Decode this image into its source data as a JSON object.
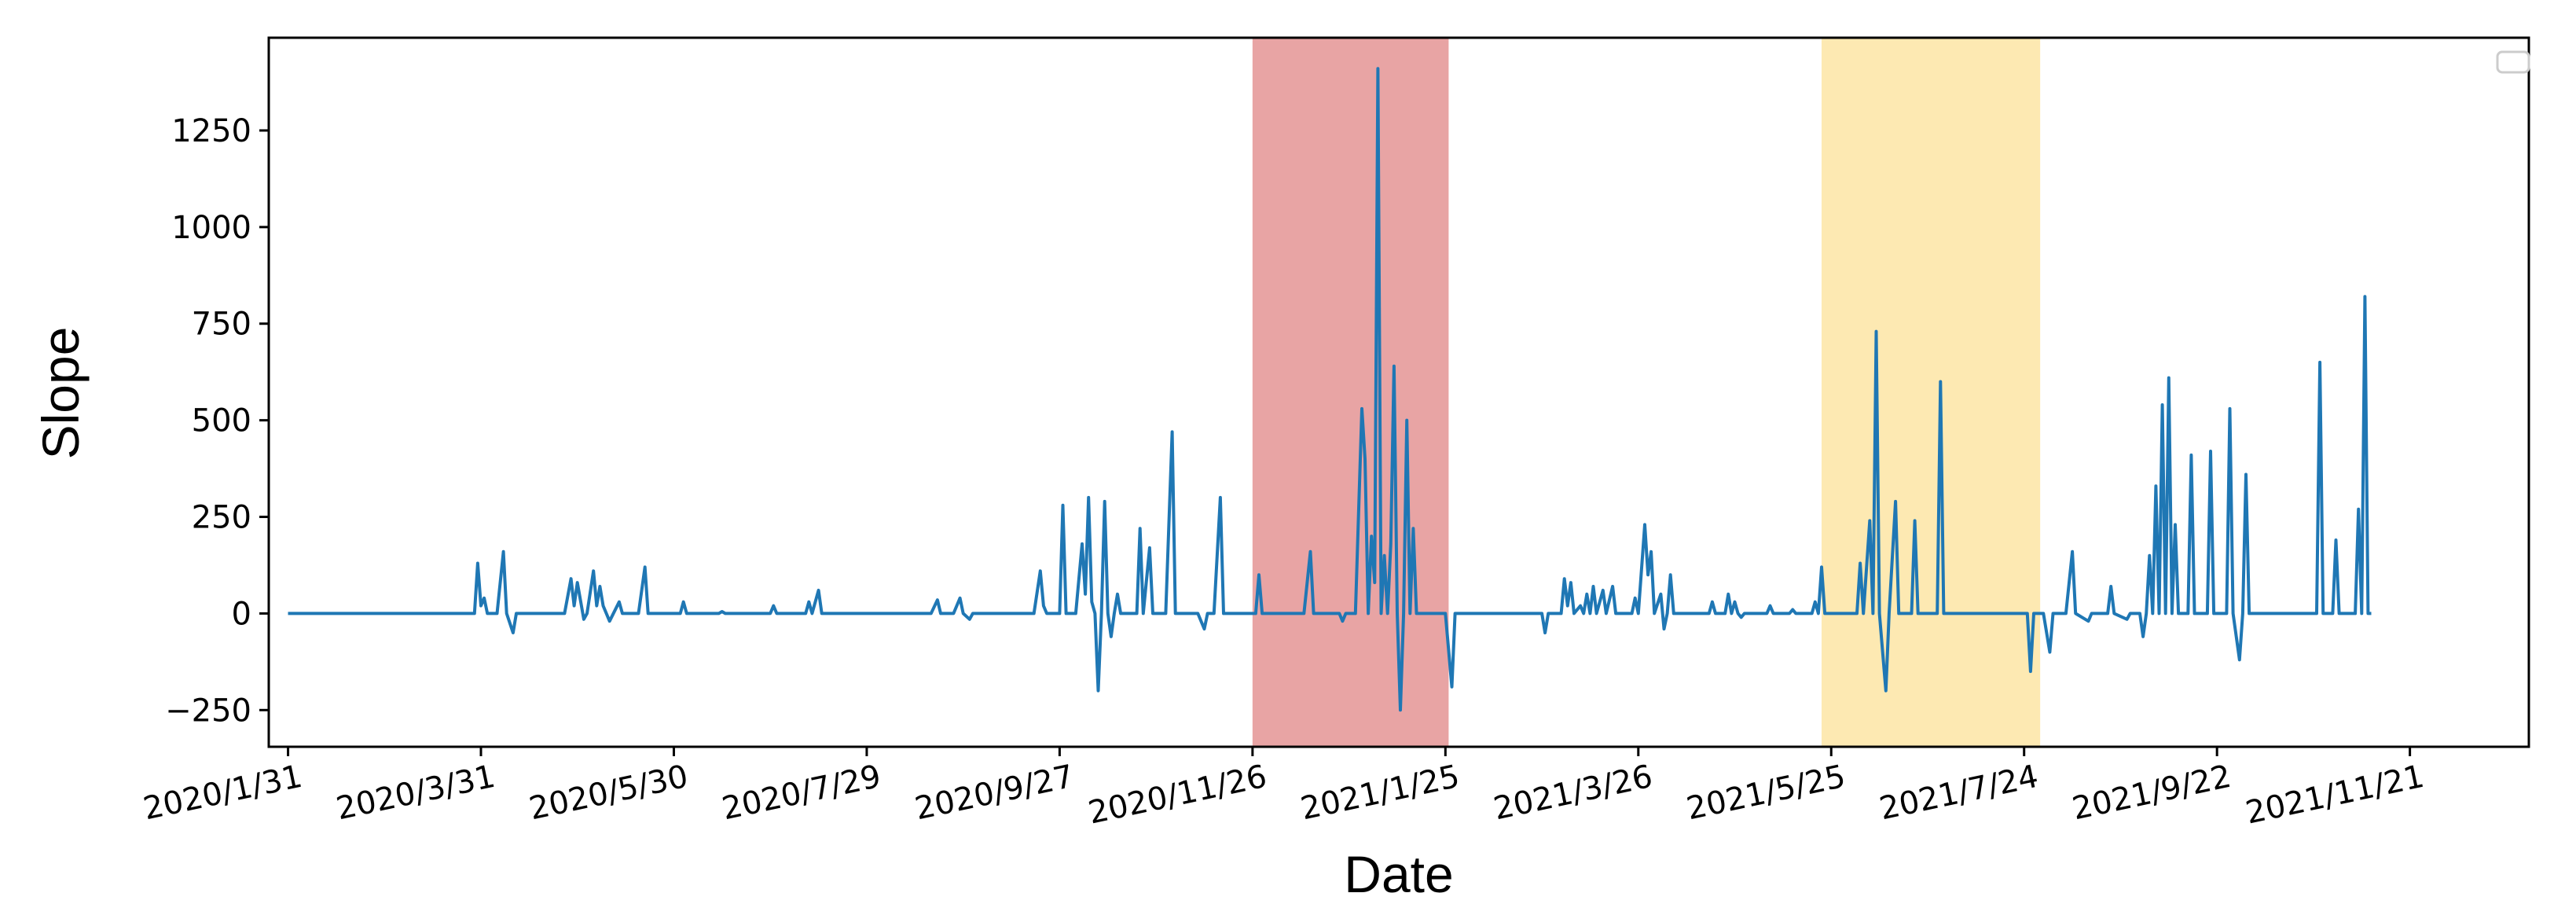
{
  "chart_data": {
    "type": "line",
    "xlabel": "Date",
    "ylabel": "Slope",
    "title": "",
    "grid": false,
    "legend": "top-right",
    "legend_entries": [],
    "x_axis_type": "date",
    "xlim": [
      "2020-01-25",
      "2021-12-28"
    ],
    "ylim": [
      -345,
      1490
    ],
    "x_tick_labels": [
      {
        "date": "2020-01-31",
        "label": "2020/1/31"
      },
      {
        "date": "2020-03-31",
        "label": "2020/3/31"
      },
      {
        "date": "2020-05-30",
        "label": "2020/5/30"
      },
      {
        "date": "2020-07-29",
        "label": "2020/7/29"
      },
      {
        "date": "2020-09-27",
        "label": "2020/9/27"
      },
      {
        "date": "2020-11-26",
        "label": "2020/11/26"
      },
      {
        "date": "2021-01-25",
        "label": "2021/1/25"
      },
      {
        "date": "2021-03-26",
        "label": "2021/3/26"
      },
      {
        "date": "2021-05-25",
        "label": "2021/5/25"
      },
      {
        "date": "2021-07-24",
        "label": "2021/7/24"
      },
      {
        "date": "2021-09-22",
        "label": "2021/9/22"
      },
      {
        "date": "2021-11-21",
        "label": "2021/11/21"
      }
    ],
    "y_ticks": [
      -250,
      0,
      250,
      500,
      750,
      1000,
      1250
    ],
    "y_tick_labels": [
      "−250",
      "0",
      "250",
      "500",
      "750",
      "1000",
      "1250"
    ],
    "shaded_regions": [
      {
        "start": "2020-11-26",
        "end": "2021-01-26",
        "color": "#e8a4a4"
      },
      {
        "start": "2021-05-22",
        "end": "2021-07-29",
        "color": "#fde9b2"
      }
    ],
    "series": [
      {
        "color": "#1f77b4",
        "points": [
          [
            "2020-01-31",
            0
          ],
          [
            "2020-03-29",
            0
          ],
          [
            "2020-03-30",
            130
          ],
          [
            "2020-03-31",
            20
          ],
          [
            "2020-04-01",
            40
          ],
          [
            "2020-04-02",
            0
          ],
          [
            "2020-04-05",
            0
          ],
          [
            "2020-04-07",
            160
          ],
          [
            "2020-04-08",
            0
          ],
          [
            "2020-04-10",
            -50
          ],
          [
            "2020-04-11",
            0
          ],
          [
            "2020-04-26",
            0
          ],
          [
            "2020-04-28",
            90
          ],
          [
            "2020-04-29",
            20
          ],
          [
            "2020-04-30",
            80
          ],
          [
            "2020-05-02",
            -15
          ],
          [
            "2020-05-03",
            0
          ],
          [
            "2020-05-05",
            110
          ],
          [
            "2020-05-06",
            20
          ],
          [
            "2020-05-07",
            70
          ],
          [
            "2020-05-08",
            20
          ],
          [
            "2020-05-10",
            -20
          ],
          [
            "2020-05-13",
            30
          ],
          [
            "2020-05-14",
            0
          ],
          [
            "2020-05-19",
            0
          ],
          [
            "2020-05-21",
            120
          ],
          [
            "2020-05-22",
            0
          ],
          [
            "2020-06-01",
            0
          ],
          [
            "2020-06-02",
            30
          ],
          [
            "2020-06-03",
            0
          ],
          [
            "2020-06-13",
            0
          ],
          [
            "2020-06-14",
            5
          ],
          [
            "2020-06-15",
            0
          ],
          [
            "2020-06-29",
            0
          ],
          [
            "2020-06-30",
            20
          ],
          [
            "2020-07-01",
            0
          ],
          [
            "2020-07-10",
            0
          ],
          [
            "2020-07-11",
            30
          ],
          [
            "2020-07-12",
            0
          ],
          [
            "2020-07-14",
            60
          ],
          [
            "2020-07-15",
            0
          ],
          [
            "2020-08-18",
            0
          ],
          [
            "2020-08-20",
            35
          ],
          [
            "2020-08-21",
            0
          ],
          [
            "2020-08-25",
            0
          ],
          [
            "2020-08-27",
            40
          ],
          [
            "2020-08-28",
            0
          ],
          [
            "2020-08-30",
            -15
          ],
          [
            "2020-08-31",
            0
          ],
          [
            "2020-09-19",
            0
          ],
          [
            "2020-09-21",
            110
          ],
          [
            "2020-09-22",
            20
          ],
          [
            "2020-09-23",
            0
          ],
          [
            "2020-09-27",
            0
          ],
          [
            "2020-09-28",
            280
          ],
          [
            "2020-09-29",
            0
          ],
          [
            "2020-10-02",
            0
          ],
          [
            "2020-10-04",
            180
          ],
          [
            "2020-10-05",
            50
          ],
          [
            "2020-10-06",
            300
          ],
          [
            "2020-10-07",
            30
          ],
          [
            "2020-10-08",
            0
          ],
          [
            "2020-10-09",
            -200
          ],
          [
            "2020-10-10",
            0
          ],
          [
            "2020-10-11",
            290
          ],
          [
            "2020-10-12",
            0
          ],
          [
            "2020-10-13",
            -60
          ],
          [
            "2020-10-14",
            0
          ],
          [
            "2020-10-15",
            50
          ],
          [
            "2020-10-16",
            0
          ],
          [
            "2020-10-21",
            0
          ],
          [
            "2020-10-22",
            220
          ],
          [
            "2020-10-23",
            0
          ],
          [
            "2020-10-25",
            170
          ],
          [
            "2020-10-26",
            0
          ],
          [
            "2020-10-30",
            0
          ],
          [
            "2020-11-01",
            470
          ],
          [
            "2020-11-02",
            0
          ],
          [
            "2020-11-09",
            0
          ],
          [
            "2020-11-11",
            -40
          ],
          [
            "2020-11-12",
            0
          ],
          [
            "2020-11-14",
            0
          ],
          [
            "2020-11-16",
            300
          ],
          [
            "2020-11-17",
            0
          ],
          [
            "2020-11-27",
            0
          ],
          [
            "2020-11-28",
            100
          ],
          [
            "2020-11-29",
            0
          ],
          [
            "2020-12-01",
            0
          ],
          [
            "2020-12-12",
            0
          ],
          [
            "2020-12-14",
            160
          ],
          [
            "2020-12-15",
            0
          ],
          [
            "2020-12-23",
            0
          ],
          [
            "2020-12-24",
            -20
          ],
          [
            "2020-12-25",
            0
          ],
          [
            "2020-12-28",
            0
          ],
          [
            "2020-12-30",
            530
          ],
          [
            "2020-12-31",
            400
          ],
          [
            "2021-01-01",
            0
          ],
          [
            "2021-01-02",
            200
          ],
          [
            "2021-01-03",
            80
          ],
          [
            "2021-01-04",
            1410
          ],
          [
            "2021-01-05",
            0
          ],
          [
            "2021-01-06",
            150
          ],
          [
            "2021-01-07",
            0
          ],
          [
            "2021-01-08",
            180
          ],
          [
            "2021-01-09",
            640
          ],
          [
            "2021-01-10",
            0
          ],
          [
            "2021-01-11",
            -250
          ],
          [
            "2021-01-12",
            0
          ],
          [
            "2021-01-13",
            500
          ],
          [
            "2021-01-14",
            0
          ],
          [
            "2021-01-15",
            220
          ],
          [
            "2021-01-16",
            0
          ],
          [
            "2021-01-25",
            0
          ],
          [
            "2021-01-27",
            -190
          ],
          [
            "2021-01-28",
            0
          ],
          [
            "2021-02-24",
            0
          ],
          [
            "2021-02-25",
            -50
          ],
          [
            "2021-02-26",
            0
          ],
          [
            "2021-03-02",
            0
          ],
          [
            "2021-03-03",
            90
          ],
          [
            "2021-03-04",
            20
          ],
          [
            "2021-03-05",
            80
          ],
          [
            "2021-03-06",
            0
          ],
          [
            "2021-03-08",
            20
          ],
          [
            "2021-03-09",
            0
          ],
          [
            "2021-03-10",
            50
          ],
          [
            "2021-03-11",
            0
          ],
          [
            "2021-03-12",
            70
          ],
          [
            "2021-03-13",
            0
          ],
          [
            "2021-03-15",
            60
          ],
          [
            "2021-03-16",
            0
          ],
          [
            "2021-03-18",
            70
          ],
          [
            "2021-03-19",
            0
          ],
          [
            "2021-03-24",
            0
          ],
          [
            "2021-03-25",
            40
          ],
          [
            "2021-03-26",
            0
          ],
          [
            "2021-03-28",
            230
          ],
          [
            "2021-03-29",
            100
          ],
          [
            "2021-03-30",
            160
          ],
          [
            "2021-03-31",
            0
          ],
          [
            "2021-04-02",
            50
          ],
          [
            "2021-04-03",
            -40
          ],
          [
            "2021-04-04",
            0
          ],
          [
            "2021-04-05",
            100
          ],
          [
            "2021-04-06",
            0
          ],
          [
            "2021-04-17",
            0
          ],
          [
            "2021-04-18",
            30
          ],
          [
            "2021-04-19",
            0
          ],
          [
            "2021-04-22",
            0
          ],
          [
            "2021-04-23",
            50
          ],
          [
            "2021-04-24",
            0
          ],
          [
            "2021-04-25",
            30
          ],
          [
            "2021-04-26",
            0
          ],
          [
            "2021-04-27",
            -10
          ],
          [
            "2021-04-28",
            0
          ],
          [
            "2021-05-05",
            0
          ],
          [
            "2021-05-06",
            20
          ],
          [
            "2021-05-07",
            0
          ],
          [
            "2021-05-12",
            0
          ],
          [
            "2021-05-13",
            10
          ],
          [
            "2021-05-14",
            0
          ],
          [
            "2021-05-19",
            0
          ],
          [
            "2021-05-20",
            30
          ],
          [
            "2021-05-21",
            0
          ],
          [
            "2021-05-22",
            120
          ],
          [
            "2021-05-23",
            0
          ],
          [
            "2021-06-02",
            0
          ],
          [
            "2021-06-03",
            130
          ],
          [
            "2021-06-04",
            0
          ],
          [
            "2021-06-06",
            240
          ],
          [
            "2021-06-07",
            0
          ],
          [
            "2021-06-08",
            730
          ],
          [
            "2021-06-09",
            0
          ],
          [
            "2021-06-11",
            -200
          ],
          [
            "2021-06-12",
            0
          ],
          [
            "2021-06-14",
            290
          ],
          [
            "2021-06-15",
            0
          ],
          [
            "2021-06-19",
            0
          ],
          [
            "2021-06-20",
            240
          ],
          [
            "2021-06-21",
            0
          ],
          [
            "2021-06-27",
            0
          ],
          [
            "2021-06-28",
            600
          ],
          [
            "2021-06-29",
            0
          ],
          [
            "2021-07-25",
            0
          ],
          [
            "2021-07-26",
            -150
          ],
          [
            "2021-07-27",
            0
          ],
          [
            "2021-07-30",
            0
          ],
          [
            "2021-08-01",
            -100
          ],
          [
            "2021-08-02",
            0
          ],
          [
            "2021-08-06",
            0
          ],
          [
            "2021-08-08",
            160
          ],
          [
            "2021-08-09",
            0
          ],
          [
            "2021-08-13",
            -20
          ],
          [
            "2021-08-14",
            0
          ],
          [
            "2021-08-19",
            0
          ],
          [
            "2021-08-20",
            70
          ],
          [
            "2021-08-21",
            0
          ],
          [
            "2021-08-25",
            -15
          ],
          [
            "2021-08-26",
            0
          ],
          [
            "2021-08-29",
            0
          ],
          [
            "2021-08-30",
            -60
          ],
          [
            "2021-08-31",
            0
          ],
          [
            "2021-09-01",
            150
          ],
          [
            "2021-09-02",
            0
          ],
          [
            "2021-09-03",
            330
          ],
          [
            "2021-09-04",
            0
          ],
          [
            "2021-09-05",
            540
          ],
          [
            "2021-09-06",
            0
          ],
          [
            "2021-09-07",
            610
          ],
          [
            "2021-09-08",
            0
          ],
          [
            "2021-09-09",
            230
          ],
          [
            "2021-09-10",
            0
          ],
          [
            "2021-09-13",
            0
          ],
          [
            "2021-09-14",
            410
          ],
          [
            "2021-09-15",
            0
          ],
          [
            "2021-09-19",
            0
          ],
          [
            "2021-09-20",
            420
          ],
          [
            "2021-09-21",
            0
          ],
          [
            "2021-09-25",
            0
          ],
          [
            "2021-09-26",
            530
          ],
          [
            "2021-09-27",
            0
          ],
          [
            "2021-09-29",
            -120
          ],
          [
            "2021-09-30",
            0
          ],
          [
            "2021-10-01",
            360
          ],
          [
            "2021-10-02",
            0
          ],
          [
            "2021-10-23",
            0
          ],
          [
            "2021-10-24",
            650
          ],
          [
            "2021-10-25",
            0
          ],
          [
            "2021-10-28",
            0
          ],
          [
            "2021-10-29",
            190
          ],
          [
            "2021-10-30",
            0
          ],
          [
            "2021-11-04",
            0
          ],
          [
            "2021-11-05",
            270
          ],
          [
            "2021-11-06",
            0
          ],
          [
            "2021-11-07",
            820
          ],
          [
            "2021-11-08",
            0
          ],
          [
            "2021-11-09",
            0
          ]
        ]
      }
    ]
  }
}
